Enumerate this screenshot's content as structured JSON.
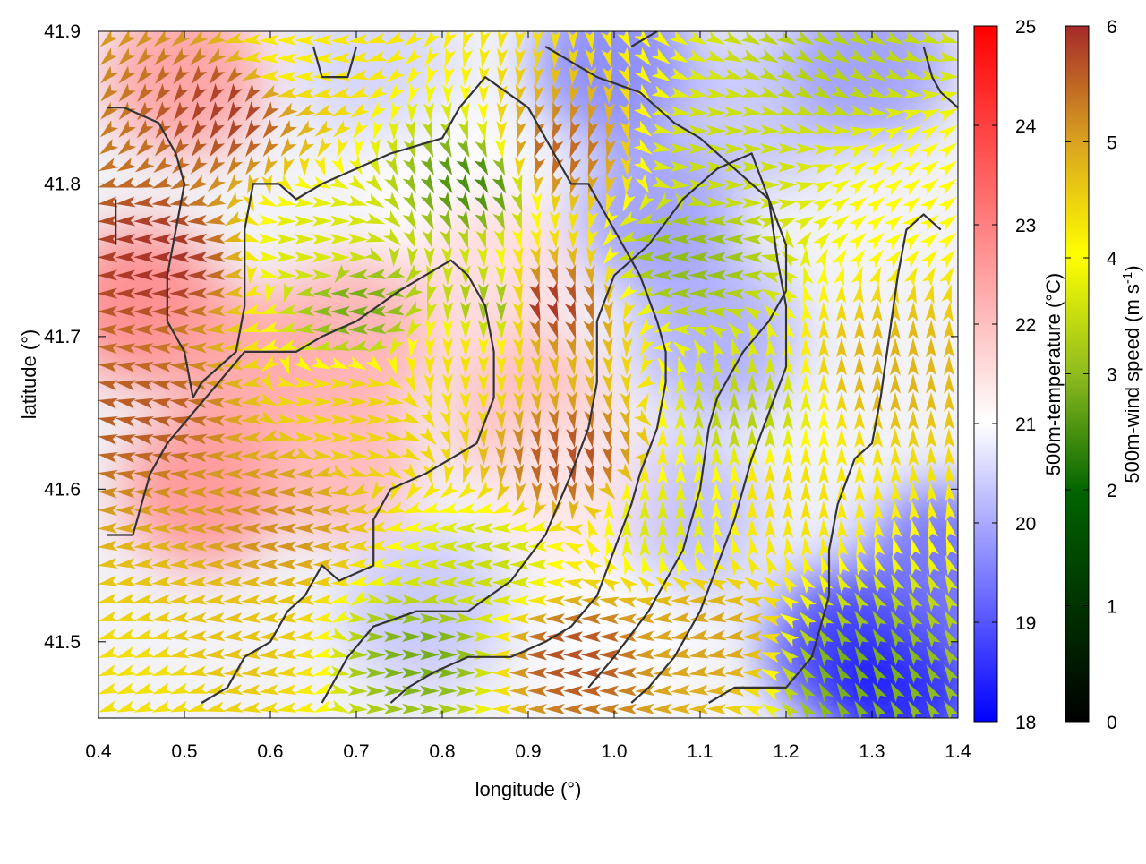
{
  "chart_data": {
    "type": "heatmap",
    "overlays": [
      "wind-vectors",
      "terrain-contours"
    ],
    "xlabel": "longitude (°)",
    "ylabel": "latitude (°)",
    "xlim": [
      0.4,
      1.4
    ],
    "ylim": [
      41.45,
      41.9
    ],
    "xticks": [
      "0.4",
      "0.5",
      "0.6",
      "0.7",
      "0.8",
      "0.9",
      "1.0",
      "1.1",
      "1.2",
      "1.3",
      "1.4"
    ],
    "yticks": [
      "41.5",
      "41.6",
      "41.7",
      "41.8",
      "41.9"
    ],
    "temperature_colorbar": {
      "label": "500m-temperature (°C)",
      "range": [
        18,
        25
      ],
      "ticks": [
        "18",
        "19",
        "20",
        "21",
        "22",
        "23",
        "24",
        "25"
      ],
      "colors": [
        "#0000ff",
        "#ffffff",
        "#ff0000"
      ]
    },
    "windspeed_colorbar": {
      "label_main": "500m-wind speed (m s",
      "label_sup": "-1",
      "label_end": ")",
      "range": [
        0,
        6
      ],
      "ticks": [
        "0",
        "1",
        "2",
        "3",
        "4",
        "5",
        "6"
      ],
      "colors": [
        "#000000",
        "#006400",
        "#8fbc1f",
        "#ffff00",
        "#daa520",
        "#a52a2a"
      ]
    },
    "temperature_blobs": [
      {
        "lon": 0.45,
        "lat": 41.72,
        "value": 23.0
      },
      {
        "lon": 0.52,
        "lat": 41.6,
        "value": 22.8
      },
      {
        "lon": 0.58,
        "lat": 41.68,
        "value": 22.5
      },
      {
        "lon": 0.7,
        "lat": 41.7,
        "value": 22.3
      },
      {
        "lon": 0.68,
        "lat": 41.62,
        "value": 22.2
      },
      {
        "lon": 0.5,
        "lat": 41.87,
        "value": 22.6
      },
      {
        "lon": 0.8,
        "lat": 41.8,
        "value": 21.0
      },
      {
        "lon": 0.86,
        "lat": 41.74,
        "value": 21.6
      },
      {
        "lon": 0.9,
        "lat": 41.65,
        "value": 22.1
      },
      {
        "lon": 1.0,
        "lat": 41.88,
        "value": 19.5
      },
      {
        "lon": 1.05,
        "lat": 41.78,
        "value": 19.8
      },
      {
        "lon": 1.12,
        "lat": 41.7,
        "value": 20.0
      },
      {
        "lon": 1.08,
        "lat": 41.58,
        "value": 20.2
      },
      {
        "lon": 1.18,
        "lat": 41.85,
        "value": 20.3
      },
      {
        "lon": 1.3,
        "lat": 41.88,
        "value": 19.8
      },
      {
        "lon": 1.25,
        "lat": 41.55,
        "value": 20.8
      },
      {
        "lon": 1.27,
        "lat": 41.5,
        "value": 18.6
      },
      {
        "lon": 1.34,
        "lat": 41.47,
        "value": 18.3
      },
      {
        "lon": 1.38,
        "lat": 41.55,
        "value": 19.2
      },
      {
        "lon": 0.78,
        "lat": 41.52,
        "value": 20.3
      },
      {
        "lon": 1.0,
        "lat": 41.5,
        "value": 21.0
      },
      {
        "lon": 0.95,
        "lat": 41.6,
        "value": 21.4
      },
      {
        "lon": 0.72,
        "lat": 41.88,
        "value": 20.5
      }
    ],
    "wind_field": [
      {
        "lon": 0.47,
        "lat": 41.75,
        "speed": 5.9,
        "dir_deg": 180
      },
      {
        "lon": 0.55,
        "lat": 41.85,
        "speed": 5.8,
        "dir_deg": 240
      },
      {
        "lon": 0.45,
        "lat": 41.65,
        "speed": 5.5,
        "dir_deg": 170
      },
      {
        "lon": 0.6,
        "lat": 41.58,
        "speed": 5.0,
        "dir_deg": 180
      },
      {
        "lon": 0.55,
        "lat": 41.5,
        "speed": 4.4,
        "dir_deg": 185
      },
      {
        "lon": 0.7,
        "lat": 41.65,
        "speed": 4.2,
        "dir_deg": 0
      },
      {
        "lon": 0.66,
        "lat": 41.76,
        "speed": 3.2,
        "dir_deg": 0
      },
      {
        "lon": 0.7,
        "lat": 41.72,
        "speed": 2.2,
        "dir_deg": 180
      },
      {
        "lon": 0.84,
        "lat": 41.8,
        "speed": 1.8,
        "dir_deg": 300
      },
      {
        "lon": 0.86,
        "lat": 41.72,
        "speed": 2.5,
        "dir_deg": 270
      },
      {
        "lon": 0.82,
        "lat": 41.68,
        "speed": 4.0,
        "dir_deg": 270
      },
      {
        "lon": 0.92,
        "lat": 41.72,
        "speed": 5.9,
        "dir_deg": 290
      },
      {
        "lon": 0.95,
        "lat": 41.62,
        "speed": 5.6,
        "dir_deg": 280
      },
      {
        "lon": 0.93,
        "lat": 41.82,
        "speed": 5.4,
        "dir_deg": 250
      },
      {
        "lon": 1.08,
        "lat": 41.75,
        "speed": 2.4,
        "dir_deg": 180
      },
      {
        "lon": 1.12,
        "lat": 41.82,
        "speed": 3.0,
        "dir_deg": 0
      },
      {
        "lon": 1.15,
        "lat": 41.65,
        "speed": 2.8,
        "dir_deg": 90
      },
      {
        "lon": 1.05,
        "lat": 41.58,
        "speed": 3.2,
        "dir_deg": 90
      },
      {
        "lon": 1.2,
        "lat": 41.6,
        "speed": 4.0,
        "dir_deg": 90
      },
      {
        "lon": 1.32,
        "lat": 41.68,
        "speed": 4.6,
        "dir_deg": 90
      },
      {
        "lon": 1.25,
        "lat": 41.88,
        "speed": 2.8,
        "dir_deg": 330
      },
      {
        "lon": 1.35,
        "lat": 41.8,
        "speed": 3.6,
        "dir_deg": 40
      },
      {
        "lon": 0.85,
        "lat": 41.55,
        "speed": 3.0,
        "dir_deg": 180
      },
      {
        "lon": 0.78,
        "lat": 41.49,
        "speed": 2.2,
        "dir_deg": 0
      },
      {
        "lon": 0.95,
        "lat": 41.49,
        "speed": 5.6,
        "dir_deg": 180
      },
      {
        "lon": 1.1,
        "lat": 41.5,
        "speed": 4.8,
        "dir_deg": 190
      },
      {
        "lon": 1.28,
        "lat": 41.48,
        "speed": 2.2,
        "dir_deg": 120
      },
      {
        "lon": 0.45,
        "lat": 41.47,
        "speed": 4.0,
        "dir_deg": 200
      },
      {
        "lon": 0.62,
        "lat": 41.88,
        "speed": 3.8,
        "dir_deg": 180
      }
    ],
    "contours": [
      [
        [
          0.41,
          41.85
        ],
        [
          0.43,
          41.85
        ],
        [
          0.47,
          41.84
        ],
        [
          0.49,
          41.82
        ],
        [
          0.5,
          41.8
        ],
        [
          0.49,
          41.77
        ],
        [
          0.48,
          41.74
        ],
        [
          0.48,
          41.71
        ],
        [
          0.5,
          41.69
        ],
        [
          0.51,
          41.66
        ],
        [
          0.52,
          41.67
        ],
        [
          0.56,
          41.69
        ],
        [
          0.57,
          41.72
        ],
        [
          0.57,
          41.77
        ],
        [
          0.58,
          41.8
        ],
        [
          0.61,
          41.8
        ],
        [
          0.63,
          41.79
        ],
        [
          0.66,
          41.8
        ],
        [
          0.7,
          41.81
        ],
        [
          0.74,
          41.82
        ],
        [
          0.8,
          41.83
        ],
        [
          0.82,
          41.85
        ],
        [
          0.85,
          41.87
        ],
        [
          0.9,
          41.85
        ],
        [
          0.93,
          41.82
        ],
        [
          0.95,
          41.8
        ],
        [
          0.97,
          41.8
        ],
        [
          0.99,
          41.78
        ],
        [
          1.01,
          41.76
        ],
        [
          1.03,
          41.74
        ],
        [
          1.05,
          41.71
        ],
        [
          1.06,
          41.69
        ],
        [
          1.06,
          41.67
        ],
        [
          1.05,
          41.64
        ],
        [
          1.03,
          41.61
        ],
        [
          1.02,
          41.59
        ],
        [
          1.0,
          41.56
        ],
        [
          0.98,
          41.53
        ],
        [
          0.95,
          41.51
        ],
        [
          0.92,
          41.5
        ],
        [
          0.88,
          41.49
        ],
        [
          0.83,
          41.49
        ],
        [
          0.79,
          41.48
        ],
        [
          0.76,
          41.47
        ],
        [
          0.74,
          41.46
        ]
      ],
      [
        [
          0.41,
          41.57
        ],
        [
          0.44,
          41.57
        ],
        [
          0.46,
          41.61
        ],
        [
          0.48,
          41.63
        ],
        [
          0.51,
          41.65
        ],
        [
          0.54,
          41.67
        ],
        [
          0.57,
          41.69
        ],
        [
          0.6,
          41.69
        ],
        [
          0.63,
          41.69
        ],
        [
          0.66,
          41.7
        ],
        [
          0.7,
          41.71
        ],
        [
          0.75,
          41.73
        ],
        [
          0.78,
          41.74
        ],
        [
          0.81,
          41.75
        ],
        [
          0.83,
          41.74
        ],
        [
          0.85,
          41.72
        ],
        [
          0.86,
          41.69
        ],
        [
          0.86,
          41.66
        ],
        [
          0.84,
          41.63
        ],
        [
          0.81,
          41.62
        ],
        [
          0.78,
          41.61
        ],
        [
          0.74,
          41.6
        ],
        [
          0.72,
          41.58
        ],
        [
          0.72,
          41.55
        ],
        [
          0.68,
          41.54
        ],
        [
          0.66,
          41.55
        ],
        [
          0.64,
          41.53
        ],
        [
          0.62,
          41.52
        ],
        [
          0.6,
          41.5
        ],
        [
          0.57,
          41.49
        ],
        [
          0.55,
          41.47
        ],
        [
          0.52,
          41.46
        ]
      ],
      [
        [
          0.66,
          41.46
        ],
        [
          0.69,
          41.49
        ],
        [
          0.72,
          41.51
        ],
        [
          0.77,
          41.52
        ],
        [
          0.83,
          41.52
        ],
        [
          0.88,
          41.54
        ],
        [
          0.92,
          41.57
        ],
        [
          0.95,
          41.61
        ],
        [
          0.97,
          41.64
        ],
        [
          0.98,
          41.67
        ],
        [
          0.98,
          41.71
        ],
        [
          1.0,
          41.74
        ],
        [
          1.04,
          41.76
        ],
        [
          1.08,
          41.79
        ],
        [
          1.12,
          41.81
        ],
        [
          1.16,
          41.82
        ],
        [
          1.18,
          41.79
        ],
        [
          1.19,
          41.75
        ],
        [
          1.2,
          41.72
        ],
        [
          1.2,
          41.68
        ],
        [
          1.18,
          41.65
        ],
        [
          1.16,
          41.62
        ],
        [
          1.14,
          41.58
        ],
        [
          1.12,
          41.55
        ],
        [
          1.1,
          41.52
        ],
        [
          1.07,
          41.49
        ],
        [
          1.04,
          41.47
        ],
        [
          1.02,
          41.46
        ]
      ],
      [
        [
          0.97,
          41.47
        ],
        [
          1.0,
          41.49
        ],
        [
          1.04,
          41.52
        ],
        [
          1.08,
          41.56
        ],
        [
          1.1,
          41.6
        ],
        [
          1.11,
          41.64
        ],
        [
          1.12,
          41.66
        ],
        [
          1.15,
          41.69
        ],
        [
          1.18,
          41.71
        ],
        [
          1.2,
          41.73
        ],
        [
          1.2,
          41.76
        ],
        [
          1.18,
          41.79
        ],
        [
          1.14,
          41.81
        ],
        [
          1.1,
          41.83
        ],
        [
          1.07,
          41.84
        ],
        [
          1.03,
          41.86
        ],
        [
          0.98,
          41.87
        ],
        [
          0.95,
          41.88
        ],
        [
          0.92,
          41.89
        ]
      ],
      [
        [
          1.11,
          41.46
        ],
        [
          1.14,
          41.47
        ],
        [
          1.18,
          41.47
        ],
        [
          1.2,
          41.47
        ],
        [
          1.23,
          41.49
        ],
        [
          1.24,
          41.51
        ],
        [
          1.25,
          41.53
        ],
        [
          1.25,
          41.56
        ],
        [
          1.26,
          41.59
        ],
        [
          1.28,
          41.62
        ],
        [
          1.3,
          41.63
        ],
        [
          1.31,
          41.66
        ],
        [
          1.32,
          41.7
        ],
        [
          1.33,
          41.74
        ],
        [
          1.34,
          41.77
        ],
        [
          1.36,
          41.78
        ],
        [
          1.38,
          41.77
        ]
      ],
      [
        [
          1.36,
          41.89
        ],
        [
          1.37,
          41.87
        ],
        [
          1.38,
          41.86
        ],
        [
          1.4,
          41.85
        ]
      ],
      [
        [
          0.65,
          41.89
        ],
        [
          0.66,
          41.87
        ],
        [
          0.69,
          41.87
        ],
        [
          0.7,
          41.89
        ]
      ],
      [
        [
          0.42,
          41.79
        ],
        [
          0.42,
          41.76
        ]
      ],
      [
        [
          1.02,
          41.89
        ],
        [
          1.05,
          41.9
        ]
      ]
    ]
  }
}
